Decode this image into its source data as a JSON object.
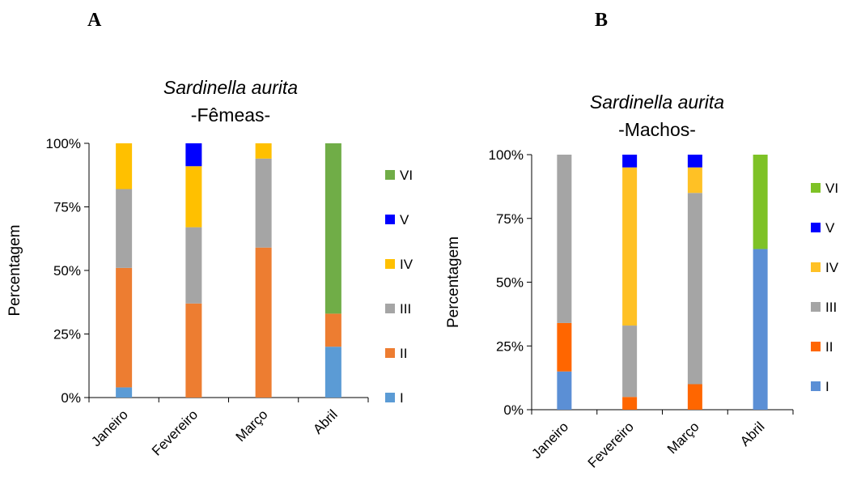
{
  "panels": {
    "a": {
      "letter": "A"
    },
    "b": {
      "letter": "B"
    }
  },
  "chart_data": [
    {
      "type": "bar",
      "stacked": true,
      "title": "Sardinella aurita",
      "subtitle": "-Fêmeas-",
      "xlabel": "",
      "ylabel": "Percentagem",
      "ylim": [
        0,
        100
      ],
      "yticks": [
        "0%",
        "25%",
        "50%",
        "75%",
        "100%"
      ],
      "categories": [
        "Janeiro",
        "Fevereiro",
        "Março",
        "Abril"
      ],
      "legend_position": "right",
      "series": [
        {
          "name": "I",
          "color": "#5b9bd5",
          "values": [
            4,
            0,
            0,
            20
          ]
        },
        {
          "name": "II",
          "color": "#ed7d31",
          "values": [
            47,
            37,
            59,
            13
          ]
        },
        {
          "name": "III",
          "color": "#a5a5a5",
          "values": [
            31,
            30,
            35,
            0
          ]
        },
        {
          "name": "IV",
          "color": "#ffc000",
          "values": [
            18,
            24,
            6,
            0
          ]
        },
        {
          "name": "V",
          "color": "#0000ff",
          "values": [
            0,
            9,
            0,
            0
          ]
        },
        {
          "name": "VI",
          "color": "#70ad47",
          "values": [
            0,
            0,
            0,
            67
          ]
        }
      ]
    },
    {
      "type": "bar",
      "stacked": true,
      "title": "Sardinella aurita",
      "subtitle": "-Machos-",
      "xlabel": "",
      "ylabel": "Percentagem",
      "ylim": [
        0,
        100
      ],
      "yticks": [
        "0%",
        "25%",
        "50%",
        "75%",
        "100%"
      ],
      "categories": [
        "Janeiro",
        "Fevereiro",
        "Março",
        "Abril"
      ],
      "legend_position": "right",
      "series": [
        {
          "name": "I",
          "color": "#5b8fd5",
          "values": [
            15,
            0,
            0,
            63
          ]
        },
        {
          "name": "II",
          "color": "#ff6600",
          "values": [
            19,
            5,
            10,
            0
          ]
        },
        {
          "name": "III",
          "color": "#a5a5a5",
          "values": [
            66,
            28,
            75,
            0
          ]
        },
        {
          "name": "IV",
          "color": "#ffc125",
          "values": [
            0,
            62,
            10,
            0
          ]
        },
        {
          "name": "V",
          "color": "#0000ff",
          "values": [
            0,
            5,
            5,
            0
          ]
        },
        {
          "name": "VI",
          "color": "#7ec226",
          "values": [
            0,
            0,
            0,
            37
          ]
        }
      ]
    }
  ]
}
